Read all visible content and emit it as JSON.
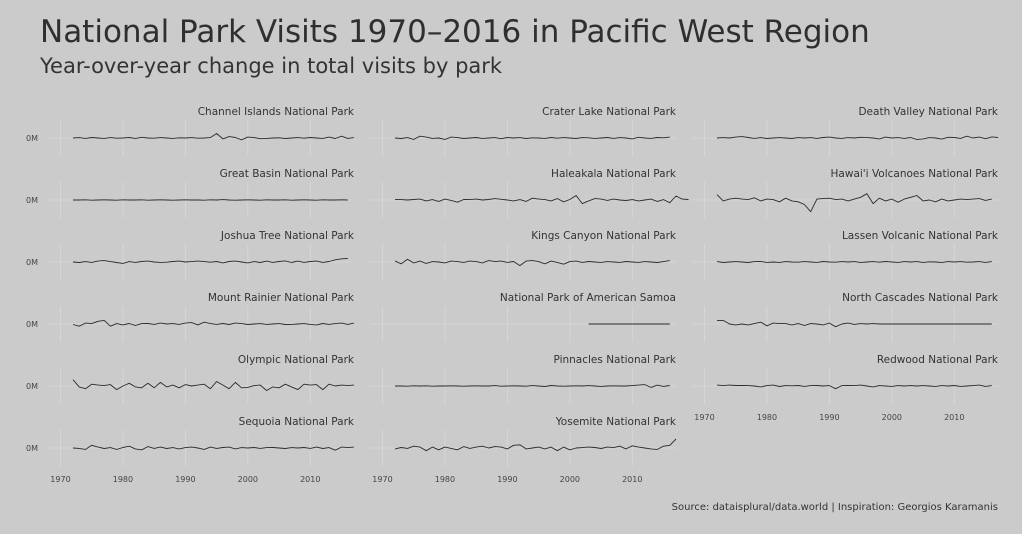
{
  "chart_data": {
    "type": "line",
    "title": "National Park Visits 1970–2016 in Pacific West Region",
    "subtitle": "Year-over-year change in total visits by park",
    "caption": "Source: dataisplural/data.world | Inspiration: Georgios Karamanis",
    "xlabel": "",
    "ylabel": "",
    "x_ticks": [
      1970,
      1980,
      1990,
      2000,
      2010
    ],
    "y_tick_label": "0M",
    "xlim": [
      1968,
      2017
    ],
    "ylim": [
      -1,
      1
    ],
    "grid": true,
    "colors": {
      "line": "#2b2b2b",
      "grid": "#d9d9d9",
      "background": "#cbcbcb"
    },
    "facets": [
      {
        "name": "Channel Islands National Park",
        "x_start": 1972,
        "values": [
          0,
          0.02,
          -0.02,
          0.03,
          0,
          -0.02,
          0.02,
          -0.01,
          0,
          0.03,
          -0.02,
          0.04,
          0,
          -0.01,
          0.02,
          0,
          -0.02,
          0.01,
          0,
          0.02,
          -0.01,
          0,
          0.02,
          0.25,
          -0.05,
          0.08,
          0.03,
          -0.1,
          0.05,
          0.02,
          -0.04,
          -0.02,
          0,
          0.01,
          -0.03,
          0,
          0.02,
          -0.01,
          0.03,
          0,
          -0.02,
          0.05,
          -0.03,
          0.1,
          -0.02,
          0.02
        ]
      },
      {
        "name": "Crater Lake National Park",
        "x_start": 1972,
        "values": [
          0,
          -0.03,
          0.02,
          -0.08,
          0.1,
          0.05,
          -0.02,
          0,
          -0.08,
          0.05,
          0.02,
          -0.03,
          0,
          0.03,
          -0.02,
          0,
          0.02,
          -0.04,
          0.03,
          0,
          0.02,
          -0.03,
          0.01,
          0,
          -0.02,
          0.03,
          -0.01,
          0.02,
          0,
          -0.03,
          0.02,
          0.01,
          -0.02,
          0,
          0.03,
          -0.02,
          0.02,
          0,
          -0.05,
          0.04,
          0,
          -0.02,
          0.03,
          0.01,
          0.05
        ]
      },
      {
        "name": "Death Valley National Park",
        "x_start": 1972,
        "values": [
          0,
          0.02,
          0,
          0.05,
          0.08,
          0.03,
          -0.02,
          0.02,
          -0.03,
          0,
          0.02,
          0,
          -0.03,
          0.02,
          0,
          0.02,
          -0.02,
          0.03,
          0.05,
          0,
          -0.02,
          0.02,
          0,
          0.04,
          0.02,
          0,
          -0.05,
          0.05,
          0,
          0.02,
          -0.02,
          0.03,
          -0.08,
          -0.05,
          0.02,
          0,
          -0.06,
          0.04,
          0.03,
          -0.02,
          0.1,
          0,
          0.05,
          -0.04,
          0.06,
          0.03
        ]
      },
      {
        "name": "Great Basin National Park",
        "x_start": 1972,
        "values": [
          0,
          0,
          0.01,
          -0.01,
          0,
          0.01,
          0,
          -0.01,
          0.01,
          0,
          0,
          0.01,
          -0.01,
          0,
          0.01,
          0,
          -0.01,
          0,
          0.01,
          0,
          0,
          -0.01,
          0.01,
          0,
          0.02,
          0,
          -0.01,
          0,
          0.01,
          0,
          -0.01,
          0.01,
          0,
          0,
          0.01,
          -0.01,
          0,
          0.01,
          0,
          -0.01,
          0.01,
          0,
          0,
          0.01,
          0
        ]
      },
      {
        "name": "Haleakala National Park",
        "x_start": 1972,
        "values": [
          0.02,
          0.02,
          0,
          0.03,
          0.05,
          -0.05,
          0.02,
          -0.08,
          0.05,
          -0.02,
          -0.12,
          0.03,
          0.02,
          0.05,
          0,
          0.03,
          0.08,
          0.04,
          0,
          -0.05,
          0.02,
          -0.08,
          0.1,
          0.05,
          0.02,
          -0.05,
          0.08,
          -0.1,
          0.03,
          0.25,
          -0.2,
          -0.05,
          0.08,
          0.05,
          -0.02,
          0.05,
          0,
          -0.03,
          0.02,
          -0.05,
          0,
          0.05,
          -0.08,
          0.02,
          -0.15,
          0.22,
          0.05,
          0.03
        ]
      },
      {
        "name": "Hawai'i Volcanoes National Park",
        "x_start": 1972,
        "values": [
          0.3,
          -0.05,
          0.05,
          0.1,
          0.05,
          0.02,
          0.12,
          -0.05,
          0.05,
          0.02,
          -0.1,
          0.1,
          -0.05,
          -0.1,
          -0.25,
          -0.65,
          0.05,
          0.08,
          0.1,
          0.02,
          0.05,
          -0.05,
          0.05,
          0.15,
          0.35,
          -0.2,
          0.1,
          -0.05,
          0.05,
          -0.12,
          0.05,
          0.15,
          0.25,
          -0.05,
          0,
          -0.1,
          0.05,
          -0.05,
          0,
          0.05,
          0.02,
          0.05,
          0.08,
          -0.02,
          0.05
        ]
      },
      {
        "name": "Joshua Tree National Park",
        "x_start": 1972,
        "values": [
          0,
          -0.03,
          0.02,
          -0.02,
          0.05,
          0.08,
          0.02,
          -0.03,
          -0.08,
          0.02,
          -0.02,
          0.03,
          0.05,
          0,
          -0.02,
          -0.01,
          0.03,
          0.05,
          0,
          0.02,
          0.05,
          0.02,
          -0.01,
          0.03,
          -0.05,
          0.03,
          0.05,
          0,
          -0.05,
          0.02,
          -0.03,
          0.05,
          -0.02,
          0.03,
          0.06,
          -0.03,
          0.05,
          -0.02,
          0.03,
          0.05,
          -0.02,
          0.03,
          0.12,
          0.18,
          0.2
        ]
      },
      {
        "name": "Kings Canyon National Park",
        "x_start": 1972,
        "values": [
          0.05,
          -0.1,
          0.15,
          -0.05,
          0.05,
          -0.08,
          0.02,
          0,
          -0.05,
          0.05,
          0.02,
          -0.02,
          0.05,
          0.02,
          -0.05,
          0.08,
          0.02,
          0.05,
          -0.02,
          0.03,
          -0.2,
          0.05,
          0.08,
          0.02,
          -0.1,
          0.05,
          -0.02,
          -0.12,
          0.02,
          0.05,
          -0.02,
          0.03,
          0,
          -0.02,
          0.02,
          0,
          -0.02,
          0.03,
          0,
          -0.02,
          0.02,
          0,
          -0.03,
          0.02,
          0.08
        ]
      },
      {
        "name": "Lassen Volcanic National Park",
        "x_start": 1972,
        "values": [
          0.02,
          -0.03,
          0,
          0.02,
          0,
          -0.03,
          0.02,
          0.03,
          -0.02,
          0,
          -0.02,
          0.02,
          0,
          -0.01,
          0.02,
          0,
          -0.02,
          0.03,
          0,
          -0.01,
          0.02,
          0,
          0.02,
          -0.02,
          0,
          0.02,
          -0.01,
          0.03,
          0,
          -0.02,
          0.02,
          0,
          0.02,
          -0.02,
          0.01,
          0,
          -0.02,
          0.02,
          0,
          0.02,
          -0.01,
          0,
          0.02,
          -0.02,
          0.02
        ]
      },
      {
        "name": "Mount Rainier National Park",
        "x_start": 1972,
        "values": [
          -0.03,
          -0.12,
          0.05,
          0.02,
          0.15,
          0.2,
          -0.12,
          0.02,
          -0.05,
          0.03,
          -0.08,
          0.02,
          0.03,
          -0.02,
          0.05,
          0,
          0.02,
          -0.02,
          0.05,
          0.08,
          -0.05,
          0.1,
          0.02,
          -0.02,
          0.03,
          -0.03,
          0.05,
          0.02,
          -0.03,
          0,
          0.02,
          -0.02,
          0,
          0.02,
          -0.03,
          -0.02,
          0,
          0.02,
          -0.02,
          -0.05,
          0.03,
          -0.02,
          0.02,
          0.05,
          -0.02,
          0.05
        ]
      },
      {
        "name": "National Park of American Samoa",
        "x_start": 2003,
        "values": [
          0,
          0,
          0,
          0,
          0,
          0,
          0,
          0,
          0,
          0,
          0,
          0,
          0,
          0
        ]
      },
      {
        "name": "North Cascades National Park",
        "x_start": 1972,
        "values": [
          0.2,
          0.2,
          0,
          -0.05,
          0,
          -0.05,
          0.02,
          0.1,
          -0.1,
          0.05,
          0.02,
          0.02,
          -0.05,
          0.02,
          -0.08,
          0.02,
          0,
          -0.05,
          0.05,
          -0.15,
          0,
          0.05,
          -0.02,
          0.02,
          0,
          0.02,
          0,
          0,
          0,
          0,
          0,
          0,
          0,
          0,
          0,
          0,
          0,
          0,
          0,
          0,
          0,
          0,
          0,
          0,
          0
        ]
      },
      {
        "name": "Olympic National Park",
        "x_start": 1972,
        "values": [
          0.35,
          -0.05,
          -0.15,
          0.1,
          0.05,
          0.02,
          0.08,
          -0.2,
          0,
          0.15,
          -0.05,
          -0.1,
          0.15,
          -0.1,
          0.2,
          -0.05,
          0.05,
          -0.1,
          0.08,
          0,
          0.05,
          0.1,
          -0.15,
          0.25,
          0.05,
          -0.15,
          0.2,
          -0.1,
          -0.08,
          0.02,
          0.05,
          -0.25,
          -0.05,
          -0.1,
          0.1,
          -0.05,
          -0.2,
          0.1,
          0.05,
          0.08,
          -0.2,
          0.1,
          0,
          0.05,
          0.02,
          0.05
        ]
      },
      {
        "name": "Pinnacles National Park",
        "x_start": 1972,
        "values": [
          0,
          0,
          -0.01,
          0.01,
          0,
          0.01,
          -0.01,
          0,
          0,
          0.01,
          0,
          -0.01,
          0,
          0.01,
          0,
          0,
          0.02,
          -0.01,
          0,
          0.01,
          0,
          -0.01,
          0.02,
          0,
          -0.03,
          0.03,
          0,
          -0.01,
          0,
          0.01,
          0,
          0.02,
          0,
          -0.02,
          0,
          0.01,
          0,
          0,
          0.02,
          0.05,
          0.08,
          -0.08,
          0.05,
          -0.02,
          0.03
        ]
      },
      {
        "name": "Redwood National Park",
        "x_start": 1972,
        "values": [
          0.05,
          0.02,
          0.05,
          0.03,
          0.03,
          0.02,
          0,
          -0.05,
          0.02,
          0.05,
          -0.03,
          0.02,
          0.01,
          0.03,
          -0.02,
          0.02,
          0.03,
          0,
          0.02,
          -0.15,
          0.02,
          0.03,
          0.02,
          0.05,
          0,
          -0.05,
          0.02,
          0,
          -0.02,
          0.02,
          0,
          0.02,
          0,
          0.02,
          0,
          -0.02,
          0.02,
          0,
          0.03,
          -0.02,
          0,
          0.02,
          0.05,
          -0.02,
          0.02
        ]
      },
      {
        "name": "Sequoia National Park",
        "x_start": 1972,
        "values": [
          0,
          -0.02,
          -0.08,
          0.15,
          0.05,
          -0.03,
          0.02,
          -0.08,
          0.03,
          0.1,
          -0.05,
          -0.1,
          0.08,
          -0.02,
          0.05,
          -0.03,
          0.02,
          -0.05,
          0.02,
          0.05,
          0,
          -0.08,
          0.05,
          -0.02,
          0.03,
          0.05,
          -0.05,
          0.02,
          0,
          0.03,
          -0.02,
          0.02,
          0.03,
          0,
          -0.03,
          0.02,
          0,
          0.03,
          -0.02,
          0.05,
          -0.03,
          0.02,
          -0.12,
          0.05,
          0.02,
          0.05
        ]
      },
      {
        "name": "Yosemite National Park",
        "x_start": 1972,
        "values": [
          -0.05,
          0.03,
          -0.02,
          0.1,
          0.05,
          -0.15,
          0.05,
          -0.1,
          0.05,
          -0.02,
          -0.1,
          0.08,
          -0.02,
          0.05,
          0.1,
          0,
          0.08,
          0.05,
          -0.05,
          0.15,
          0.18,
          -0.05,
          0,
          0.05,
          -0.05,
          0.05,
          -0.15,
          0.05,
          -0.1,
          0,
          0.02,
          0.05,
          0.03,
          -0.03,
          0.05,
          0.02,
          0.1,
          -0.05,
          0.12,
          0.05,
          0,
          -0.05,
          -0.08,
          0.1,
          0.15,
          0.5
        ]
      }
    ]
  }
}
